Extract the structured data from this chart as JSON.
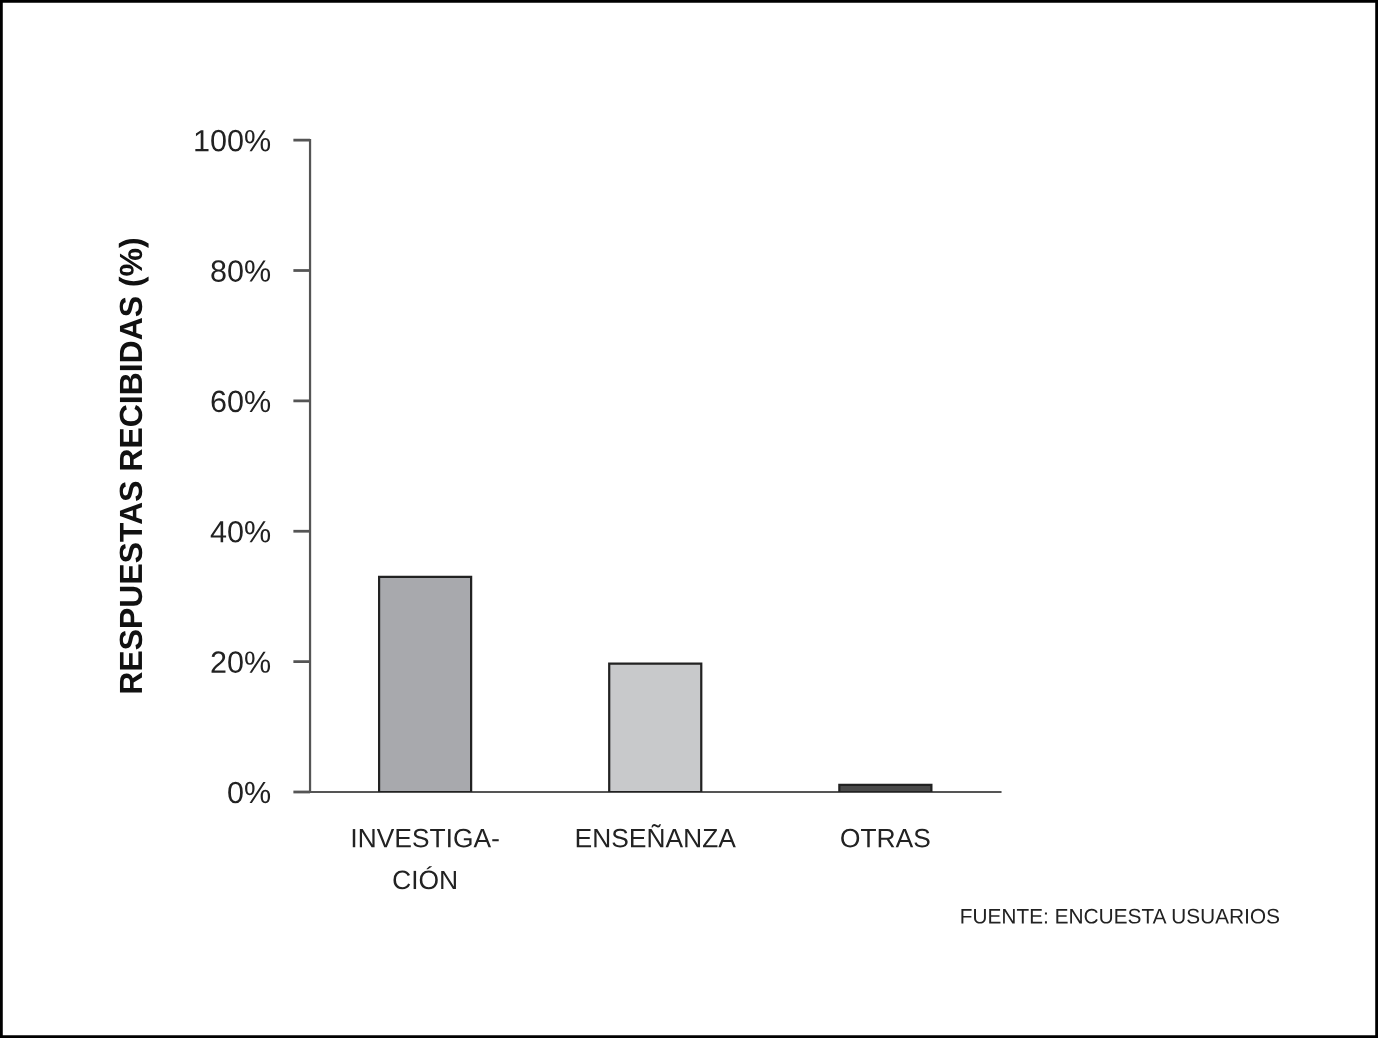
{
  "chart_data": {
    "type": "bar",
    "ylabel": "RESPUESTAS RECIBIDAS (%)",
    "categories": [
      "INVESTIGA-\nCIÓN",
      "ENSEÑANZA",
      "OTRAS"
    ],
    "values": [
      33,
      19.7,
      1.1
    ],
    "colors": [
      "#a8a9ad",
      "#c8c9cb",
      "#4a4a4a"
    ],
    "ylim": [
      0,
      100
    ],
    "yticks": [
      {
        "value": 0,
        "label": "0%"
      },
      {
        "value": 20,
        "label": "20%"
      },
      {
        "value": 40,
        "label": "40%"
      },
      {
        "value": 60,
        "label": "60%"
      },
      {
        "value": 80,
        "label": "80%"
      },
      {
        "value": 100,
        "label": "100%"
      }
    ],
    "grid": false,
    "legend": false,
    "annotations": [
      "FUENTE: ENCUESTA USUARIOS"
    ]
  }
}
